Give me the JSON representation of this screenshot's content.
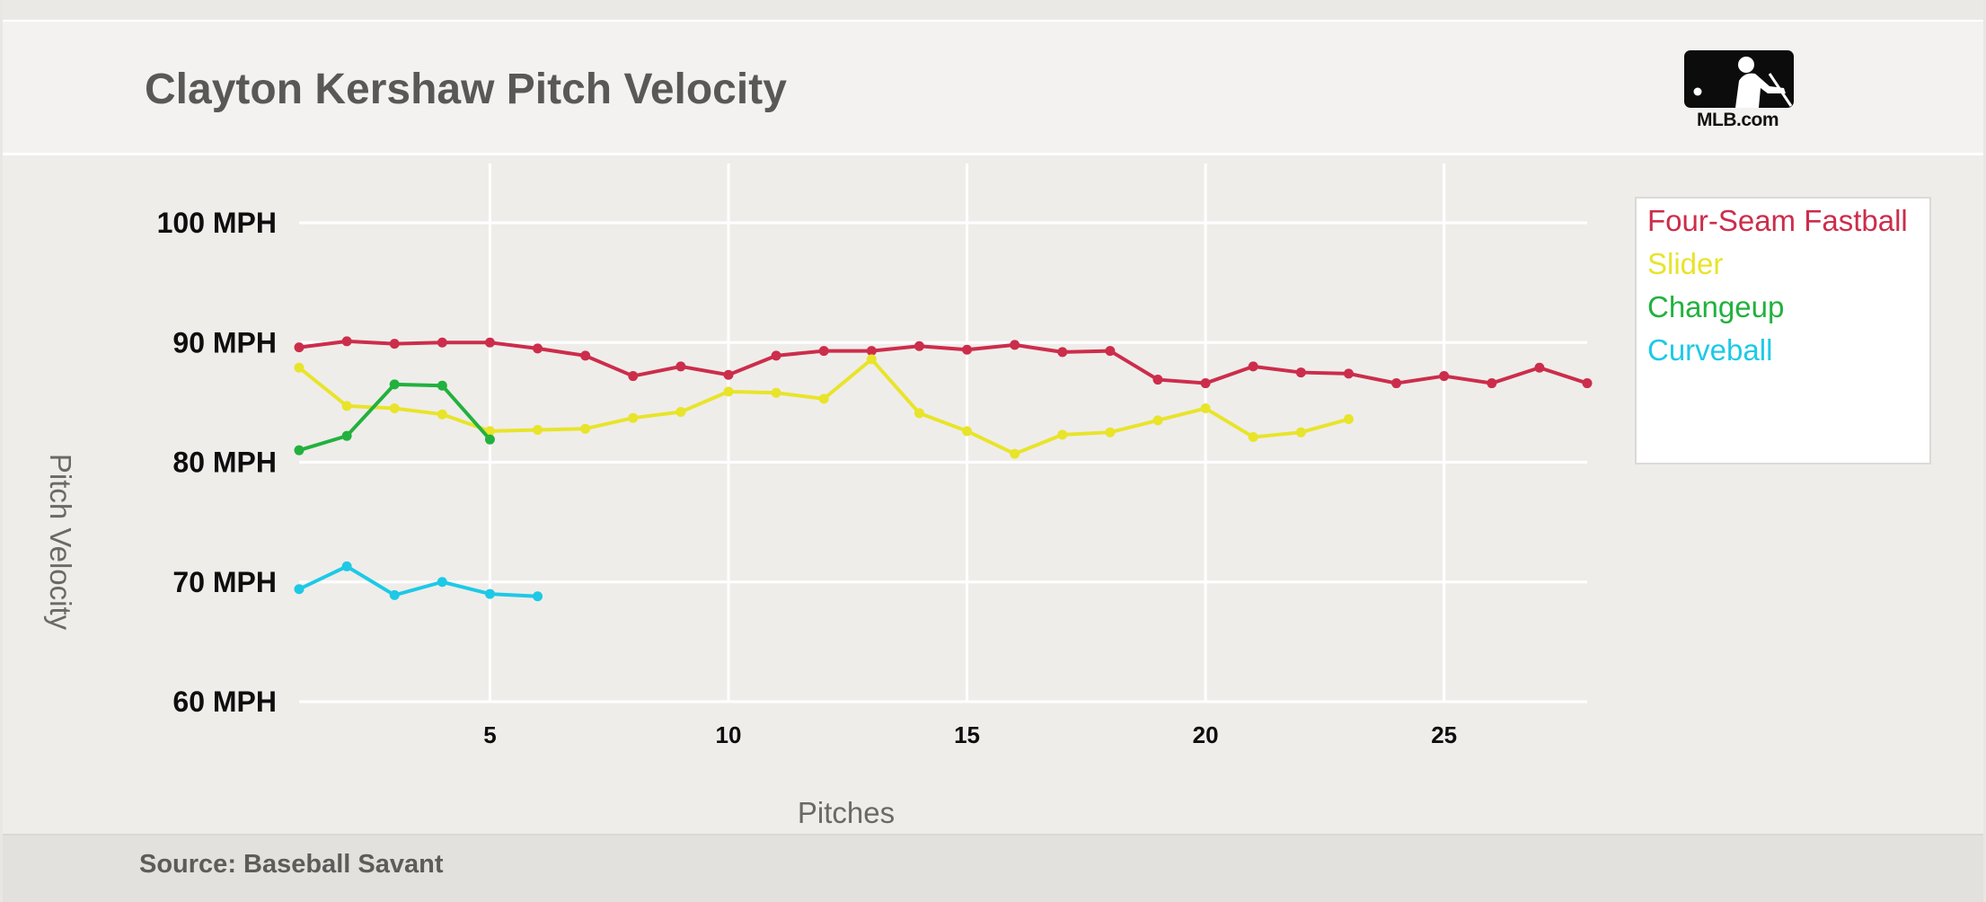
{
  "title": "Clayton Kershaw Pitch Velocity",
  "logo_text": "MLB.com",
  "source": "Source: Baseball Savant",
  "colors": {
    "background": "#efedea",
    "grid": "#ffffff",
    "four_seam": "#cc2d4b",
    "slider": "#e8e42a",
    "changeup": "#22b13e",
    "curveball": "#1ec9e6"
  },
  "chart_data": {
    "type": "line",
    "title": "Clayton Kershaw Pitch Velocity",
    "xlabel": "Pitches",
    "ylabel": "Pitch Velocity",
    "xlim": [
      1,
      28
    ],
    "ylim": [
      60,
      100
    ],
    "x_ticks": [
      5,
      10,
      15,
      20,
      25
    ],
    "y_ticks": [
      {
        "value": 60,
        "label": "60 MPH"
      },
      {
        "value": 70,
        "label": "70 MPH"
      },
      {
        "value": 80,
        "label": "80 MPH"
      },
      {
        "value": 90,
        "label": "90 MPH"
      },
      {
        "value": 100,
        "label": "100 MPH"
      }
    ],
    "grid": true,
    "legend_position": "right",
    "series": [
      {
        "name": "Four-Seam Fastball",
        "color": "#cc2d4b",
        "x": [
          1,
          2,
          3,
          4,
          5,
          6,
          7,
          8,
          9,
          10,
          11,
          12,
          13,
          14,
          15,
          16,
          17,
          18,
          19,
          20,
          21,
          22,
          23,
          24,
          25,
          26,
          27,
          28
        ],
        "values": [
          89.6,
          90.1,
          89.9,
          90.0,
          90.0,
          89.5,
          88.9,
          87.2,
          88.0,
          87.3,
          88.9,
          89.3,
          89.3,
          89.7,
          89.4,
          89.8,
          89.2,
          89.3,
          86.9,
          86.6,
          88.0,
          87.5,
          87.4,
          86.6,
          87.2,
          86.6,
          87.9,
          86.6
        ]
      },
      {
        "name": "Slider",
        "color": "#e8e42a",
        "x": [
          1,
          2,
          3,
          4,
          5,
          6,
          7,
          8,
          9,
          10,
          11,
          12,
          13,
          14,
          15,
          16,
          17,
          18,
          19,
          20,
          21,
          22,
          23
        ],
        "values": [
          87.9,
          84.7,
          84.5,
          84.0,
          82.6,
          82.7,
          82.8,
          83.7,
          84.2,
          85.9,
          85.8,
          85.3,
          88.6,
          84.1,
          82.6,
          80.7,
          82.3,
          82.5,
          83.5,
          84.5,
          82.1,
          82.5,
          83.6
        ]
      },
      {
        "name": "Changeup",
        "color": "#22b13e",
        "x": [
          1,
          2,
          3,
          4,
          5
        ],
        "values": [
          81.0,
          82.2,
          86.5,
          86.4,
          81.9
        ]
      },
      {
        "name": "Curveball",
        "color": "#1ec9e6",
        "x": [
          1,
          2,
          3,
          4,
          5,
          6
        ],
        "values": [
          69.4,
          71.3,
          68.9,
          70.0,
          69.0,
          68.8
        ]
      }
    ]
  }
}
